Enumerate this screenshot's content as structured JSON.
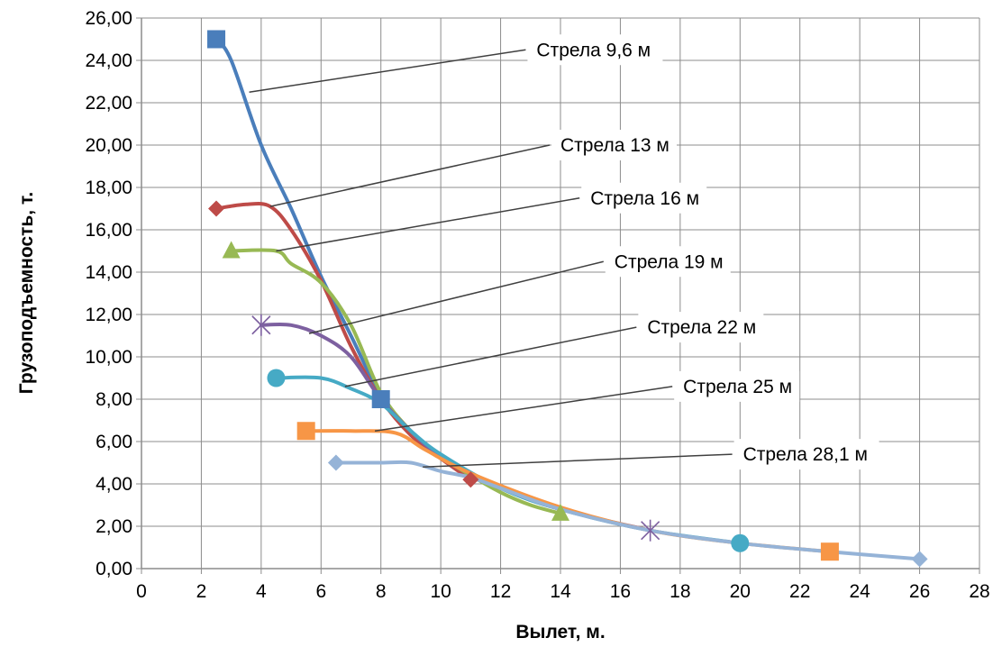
{
  "chart_data": {
    "type": "line",
    "title": "",
    "xlabel": "Вылет, м.",
    "ylabel": "Грузоподъемность, т.",
    "xlim": [
      0,
      28
    ],
    "ylim": [
      0,
      26
    ],
    "x_ticks": [
      "0",
      "2",
      "4",
      "6",
      "8",
      "10",
      "12",
      "14",
      "16",
      "18",
      "20",
      "22",
      "24",
      "26",
      "28"
    ],
    "y_ticks": [
      "0,00",
      "2,00",
      "4,00",
      "6,00",
      "8,00",
      "10,00",
      "12,00",
      "14,00",
      "16,00",
      "18,00",
      "20,00",
      "22,00",
      "24,00",
      "26,00"
    ],
    "grid": true,
    "smooth": true,
    "series": [
      {
        "name": "Стрела 9,6 м",
        "color": "#4a7ebb",
        "marker": "square",
        "x": [
          2.5,
          3.0,
          4.0,
          5.0,
          6.0,
          7.0,
          8.0
        ],
        "y": [
          25.0,
          24.0,
          20.0,
          17.0,
          13.8,
          11.0,
          8.0
        ]
      },
      {
        "name": "Стрела 13 м",
        "color": "#be4b48",
        "marker": "diamond",
        "x": [
          2.5,
          3.5,
          4.3,
          5.0,
          6.0,
          7.0,
          8.0,
          9.0,
          10.0,
          11.0
        ],
        "y": [
          17.0,
          17.2,
          17.1,
          16.0,
          13.6,
          10.5,
          8.0,
          6.3,
          5.2,
          4.2
        ]
      },
      {
        "name": "Стрела 16 м",
        "color": "#98b954",
        "marker": "triangle",
        "x": [
          3.0,
          4.5,
          5.0,
          6.0,
          7.0,
          8.0,
          9.0,
          10.0,
          11.0,
          12.0,
          13.0,
          14.0
        ],
        "y": [
          15.0,
          15.0,
          14.4,
          13.5,
          11.5,
          8.3,
          6.5,
          5.3,
          4.4,
          3.6,
          3.0,
          2.6
        ]
      },
      {
        "name": "Стрела 19 м",
        "color": "#7d60a0",
        "marker": "star",
        "x": [
          4.0,
          5.0,
          6.0,
          7.0,
          8.0,
          9.0,
          10.0,
          12.0,
          14.0,
          17.0
        ],
        "y": [
          11.5,
          11.5,
          11.0,
          10.0,
          8.0,
          6.5,
          5.3,
          3.8,
          2.8,
          1.8
        ]
      },
      {
        "name": "Стрела 22 м",
        "color": "#46aac5",
        "marker": "circle",
        "x": [
          4.5,
          6.0,
          7.0,
          8.0,
          9.0,
          10.0,
          12.0,
          14.0,
          17.0,
          20.0
        ],
        "y": [
          9.0,
          9.0,
          8.5,
          7.8,
          6.5,
          5.4,
          3.8,
          2.8,
          1.8,
          1.2
        ]
      },
      {
        "name": "Стрела 25 м",
        "color": "#f79646",
        "marker": "square",
        "x": [
          5.5,
          7.0,
          8.5,
          9.5,
          11.0,
          14.0,
          17.0,
          20.0,
          23.0
        ],
        "y": [
          6.5,
          6.5,
          6.4,
          5.6,
          4.5,
          2.9,
          1.8,
          1.2,
          0.8
        ]
      },
      {
        "name": "Стрела 28,1 м",
        "color": "#95b3d7",
        "marker": "diamond",
        "x": [
          6.5,
          8.0,
          9.0,
          10.0,
          11.0,
          12.0,
          14.0,
          17.0,
          20.0,
          23.0,
          26.0
        ],
        "y": [
          5.0,
          5.0,
          5.0,
          4.6,
          4.3,
          3.8,
          2.8,
          1.8,
          1.2,
          0.8,
          0.45
        ]
      }
    ],
    "annotations": [
      {
        "series": "Стрела 9,6 м",
        "text": "Стрела 9,6 м",
        "anchor": [
          3.6,
          22.5
        ],
        "label_at": [
          13.2,
          24.5
        ]
      },
      {
        "series": "Стрела 13 м",
        "text": "Стрела 13 м",
        "anchor": [
          4.3,
          17.1
        ],
        "label_at": [
          14.0,
          20.0
        ]
      },
      {
        "series": "Стрела 16 м",
        "text": "Стрела 16 м",
        "anchor": [
          4.5,
          15.0
        ],
        "label_at": [
          15.0,
          17.5
        ]
      },
      {
        "series": "Стрела 19 м",
        "text": "Стрела 19 м",
        "anchor": [
          5.6,
          11.1
        ],
        "label_at": [
          15.8,
          14.5
        ]
      },
      {
        "series": "Стрела 22 м",
        "text": "Стрела 22 м",
        "anchor": [
          6.8,
          8.6
        ],
        "label_at": [
          16.9,
          11.4
        ]
      },
      {
        "series": "Стрела 25 м",
        "text": "Стрела 25 м",
        "anchor": [
          7.8,
          6.5
        ],
        "label_at": [
          18.1,
          8.6
        ]
      },
      {
        "series": "Стрела 28,1 м",
        "text": "Стрела 28,1 м",
        "anchor": [
          9.4,
          4.8
        ],
        "label_at": [
          20.1,
          5.4
        ]
      }
    ]
  }
}
